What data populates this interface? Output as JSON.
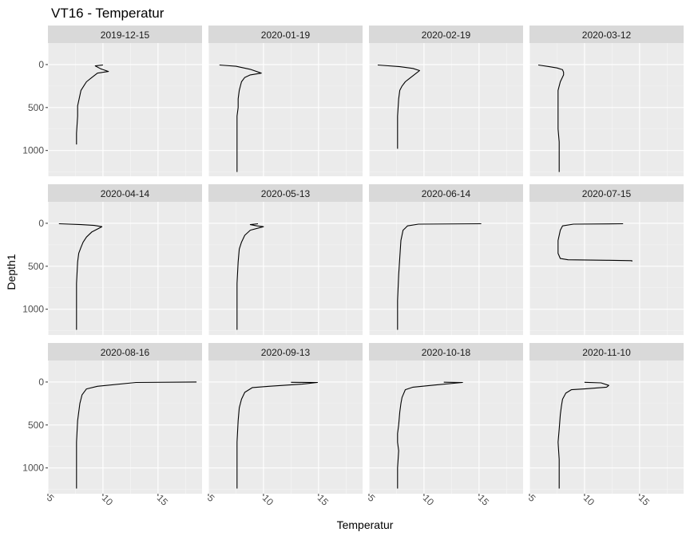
{
  "chart_data": {
    "type": "line",
    "title": "VT16  -  Temperatur",
    "xlabel": "Temperatur",
    "ylabel": "Depth1",
    "xlim": [
      5,
      19
    ],
    "ylim": [
      1300,
      -250
    ],
    "y_reversed": true,
    "x_ticks": [
      5,
      10,
      15
    ],
    "y_ticks": [
      0,
      500,
      1000
    ],
    "grid": true,
    "colors": {
      "panel_background": "#ebebeb",
      "grid_major": "#ffffff",
      "strip_background": "#d9d9d9",
      "line": "#000000"
    },
    "panels": [
      {
        "label": "2019-12-15",
        "x": [
          10.0,
          9.3,
          9.8,
          10.5,
          9.5,
          9.0,
          8.5,
          8.3,
          8.0,
          7.9,
          7.8,
          7.7,
          7.7,
          7.6,
          7.6
        ],
        "y": [
          5,
          15,
          50,
          80,
          100,
          150,
          200,
          240,
          300,
          360,
          420,
          480,
          600,
          800,
          930
        ]
      },
      {
        "label": "2020-01-19",
        "x": [
          6.0,
          7.5,
          8.8,
          9.8,
          8.8,
          8.3,
          8.0,
          7.9,
          7.8,
          7.7,
          7.7,
          7.6,
          7.6,
          7.6
        ],
        "y": [
          5,
          20,
          55,
          100,
          120,
          150,
          200,
          250,
          300,
          400,
          500,
          600,
          900,
          1250
        ]
      },
      {
        "label": "2020-02-19",
        "x": [
          5.8,
          7.8,
          9.0,
          9.6,
          9.3,
          8.8,
          8.3,
          8.0,
          7.8,
          7.7,
          7.6,
          7.6
        ],
        "y": [
          5,
          25,
          45,
          70,
          100,
          150,
          200,
          250,
          300,
          400,
          600,
          980
        ]
      },
      {
        "label": "2020-03-12",
        "x": [
          5.8,
          6.8,
          7.5,
          8.0,
          8.1,
          8.1,
          7.8,
          7.6,
          7.6,
          7.6,
          7.7,
          7.7
        ],
        "y": [
          5,
          25,
          40,
          60,
          90,
          120,
          200,
          300,
          500,
          750,
          900,
          1250
        ]
      },
      {
        "label": "2020-04-14",
        "x": [
          6.0,
          8.0,
          9.2,
          9.9,
          9.0,
          8.5,
          8.2,
          8.0,
          7.8,
          7.7,
          7.6,
          7.6
        ],
        "y": [
          5,
          15,
          25,
          40,
          100,
          160,
          220,
          280,
          350,
          450,
          700,
          1240
        ]
      },
      {
        "label": "2020-05-13",
        "x": [
          9.5,
          8.8,
          9.4,
          10.0,
          8.8,
          8.3,
          8.0,
          7.8,
          7.7,
          7.6,
          7.6
        ],
        "y": [
          5,
          15,
          30,
          40,
          80,
          140,
          220,
          300,
          450,
          700,
          1240
        ]
      },
      {
        "label": "2020-06-14",
        "x": [
          15.2,
          9.5,
          8.5,
          8.1,
          7.9,
          7.8,
          7.7,
          7.6,
          7.6
        ],
        "y": [
          5,
          10,
          30,
          80,
          200,
          400,
          600,
          900,
          1240
        ]
      },
      {
        "label": "2020-07-15",
        "x": [
          13.5,
          9.0,
          8.0,
          7.8,
          7.6,
          7.6,
          7.8,
          8.5,
          12.0,
          14.3,
          14.3
        ],
        "y": [
          5,
          10,
          30,
          80,
          200,
          350,
          410,
          425,
          430,
          435,
          445
        ]
      },
      {
        "label": "2020-08-16",
        "x": [
          18.5,
          13.0,
          9.5,
          8.5,
          8.1,
          7.9,
          7.8,
          7.7,
          7.6,
          7.6
        ],
        "y": [
          0,
          5,
          50,
          80,
          150,
          250,
          350,
          450,
          700,
          1240
        ]
      },
      {
        "label": "2020-09-13",
        "x": [
          12.5,
          14.9,
          13.5,
          10.5,
          9.0,
          8.3,
          8.0,
          7.8,
          7.7,
          7.6,
          7.6
        ],
        "y": [
          3,
          5,
          25,
          50,
          65,
          120,
          200,
          300,
          450,
          700,
          1240
        ]
      },
      {
        "label": "2020-10-18",
        "x": [
          11.8,
          13.5,
          11.0,
          9.0,
          8.3,
          8.0,
          7.9,
          7.8,
          7.7,
          7.6,
          7.6,
          7.7,
          7.6,
          7.6
        ],
        "y": [
          2,
          5,
          35,
          60,
          90,
          180,
          250,
          350,
          500,
          600,
          700,
          800,
          1000,
          1240
        ]
      },
      {
        "label": "2020-11-10",
        "x": [
          10.0,
          11.5,
          12.2,
          12.0,
          10.0,
          8.8,
          8.3,
          8.0,
          7.9,
          7.8,
          7.7,
          7.6,
          7.7,
          7.7
        ],
        "y": [
          3,
          10,
          40,
          60,
          80,
          90,
          130,
          200,
          280,
          380,
          550,
          700,
          900,
          1240
        ]
      }
    ]
  }
}
